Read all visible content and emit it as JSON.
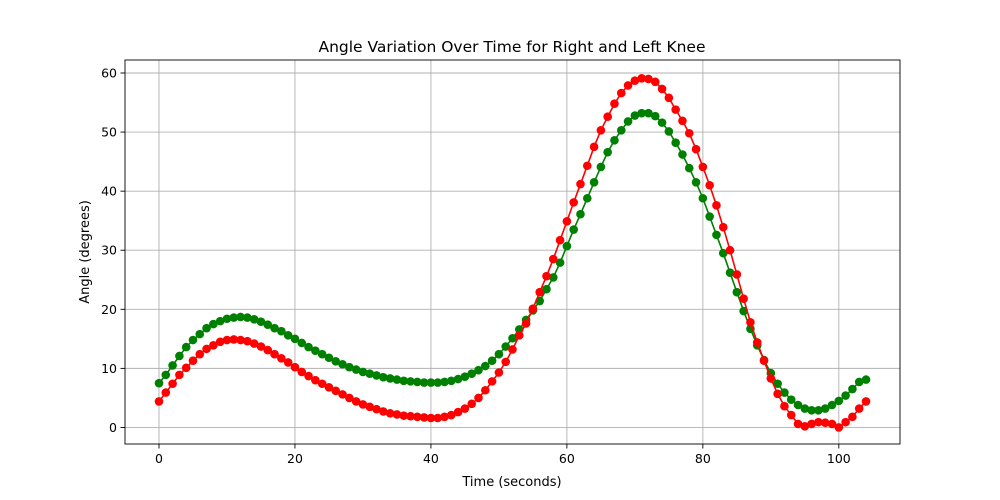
{
  "chart_data": {
    "type": "line",
    "title": "Angle Variation Over Time for Right and Left Knee",
    "xlabel": "Time (seconds)",
    "ylabel": "Angle (degrees)",
    "xlim": [
      -5,
      109
    ],
    "ylim": [
      -2.8,
      62.2
    ],
    "xticks": [
      0,
      20,
      40,
      60,
      80,
      100
    ],
    "yticks": [
      0,
      10,
      20,
      30,
      40,
      50,
      60
    ],
    "grid": true,
    "x": [
      0,
      1,
      2,
      3,
      4,
      5,
      6,
      7,
      8,
      9,
      10,
      11,
      12,
      13,
      14,
      15,
      16,
      17,
      18,
      19,
      20,
      21,
      22,
      23,
      24,
      25,
      26,
      27,
      28,
      29,
      30,
      31,
      32,
      33,
      34,
      35,
      36,
      37,
      38,
      39,
      40,
      41,
      42,
      43,
      44,
      45,
      46,
      47,
      48,
      49,
      50,
      51,
      52,
      53,
      54,
      55,
      56,
      57,
      58,
      59,
      60,
      61,
      62,
      63,
      64,
      65,
      66,
      67,
      68,
      69,
      70,
      71,
      72,
      73,
      74,
      75,
      76,
      77,
      78,
      79,
      80,
      81,
      82,
      83,
      84,
      85,
      86,
      87,
      88,
      89,
      90,
      91,
      92,
      93,
      94,
      95,
      96,
      97,
      98,
      99,
      100,
      101,
      102,
      103,
      104
    ],
    "series": [
      {
        "color": "#008000",
        "values": [
          7.5,
          8.9,
          10.5,
          12.1,
          13.6,
          14.8,
          15.8,
          16.8,
          17.5,
          18.0,
          18.4,
          18.6,
          18.7,
          18.6,
          18.3,
          17.9,
          17.4,
          16.8,
          16.3,
          15.6,
          15.0,
          14.3,
          13.6,
          13.0,
          12.4,
          11.8,
          11.2,
          10.7,
          10.2,
          9.8,
          9.4,
          9.1,
          8.8,
          8.5,
          8.3,
          8.1,
          7.9,
          7.8,
          7.7,
          7.6,
          7.6,
          7.6,
          7.7,
          7.9,
          8.2,
          8.6,
          9.1,
          9.7,
          10.4,
          11.3,
          12.4,
          13.7,
          15.1,
          16.6,
          18.2,
          19.8,
          21.4,
          23.4,
          25.4,
          27.9,
          30.7,
          33.5,
          36.1,
          38.8,
          41.5,
          44.1,
          46.6,
          48.6,
          50.3,
          51.8,
          52.8,
          53.2,
          53.2,
          52.7,
          51.6,
          50.1,
          48.2,
          46.2,
          43.9,
          41.5,
          38.8,
          35.7,
          32.6,
          29.5,
          26.2,
          22.9,
          19.7,
          16.7,
          13.9,
          11.4,
          9.2,
          7.4,
          5.9,
          4.7,
          3.8,
          3.2,
          2.9,
          2.9,
          3.2,
          3.8,
          4.5,
          5.4,
          6.5,
          7.7,
          8.1
        ]
      },
      {
        "color": "#ff0000",
        "values": [
          4.4,
          5.9,
          7.4,
          8.9,
          10.1,
          11.3,
          12.4,
          13.3,
          13.9,
          14.5,
          14.8,
          14.9,
          14.8,
          14.6,
          14.2,
          13.7,
          13.1,
          12.4,
          11.7,
          11.0,
          10.2,
          9.4,
          8.7,
          8.0,
          7.4,
          6.8,
          6.2,
          5.6,
          5.0,
          4.4,
          3.9,
          3.5,
          3.1,
          2.7,
          2.4,
          2.2,
          2.0,
          1.9,
          1.8,
          1.7,
          1.6,
          1.6,
          1.8,
          2.1,
          2.6,
          3.2,
          4.0,
          5.0,
          6.3,
          7.8,
          9.3,
          11.1,
          13.2,
          15.6,
          17.6,
          20.1,
          22.9,
          25.6,
          28.5,
          31.7,
          34.9,
          38.1,
          41.2,
          44.3,
          47.5,
          50.3,
          52.6,
          54.8,
          56.6,
          57.9,
          58.7,
          59.1,
          59.0,
          58.5,
          57.3,
          55.8,
          53.8,
          51.9,
          49.8,
          47.1,
          44.1,
          41.0,
          37.6,
          33.9,
          30.0,
          25.9,
          21.8,
          17.8,
          14.4,
          11.3,
          8.3,
          5.7,
          3.6,
          2.1,
          0.6,
          0.2,
          0.6,
          0.9,
          0.8,
          0.6,
          0.0,
          0.9,
          1.8,
          3.2,
          4.4
        ]
      }
    ]
  }
}
